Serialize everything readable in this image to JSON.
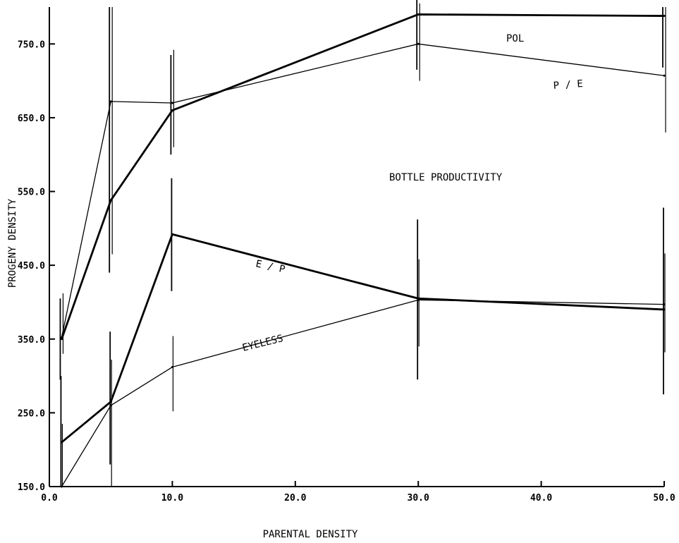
{
  "chart_data": {
    "type": "line",
    "title": "",
    "xlabel": "PARENTAL DENSITY",
    "ylabel": "PROGENY DENSITY",
    "xlim": [
      0,
      50
    ],
    "ylim": [
      150,
      800
    ],
    "xticks": [
      0,
      10,
      20,
      30,
      40,
      50
    ],
    "xtick_labels": [
      "0.0",
      "10.0",
      "20.0",
      "30.0",
      "40.0",
      "50.0"
    ],
    "yticks": [
      150,
      250,
      350,
      450,
      550,
      650,
      750
    ],
    "ytick_labels": [
      "150.0",
      "250.0",
      "350.0",
      "450.0",
      "550.0",
      "650.0",
      "750.0"
    ],
    "grid": false,
    "legend": "none",
    "annotation": "BOTTLE PRODUCTIVITY",
    "x": [
      1,
      5,
      10,
      30,
      50
    ],
    "series": [
      {
        "name": "POL",
        "weight": "bold",
        "values": [
          350,
          538,
          660,
          790,
          788
        ],
        "error_low": [
          295,
          440,
          600,
          715,
          718
        ],
        "error_high": [
          405,
          800,
          735,
          848,
          800
        ]
      },
      {
        "name": "P / E",
        "weight": "thin",
        "values": [
          352,
          672,
          670,
          750,
          707
        ],
        "error_low": [
          330,
          465,
          610,
          700,
          630
        ],
        "error_high": [
          412,
          800,
          742,
          805,
          800
        ]
      },
      {
        "name": "E / P",
        "weight": "bold",
        "values": [
          210,
          265,
          492,
          405,
          390
        ],
        "error_low": [
          150,
          180,
          415,
          295,
          275
        ],
        "error_high": [
          300,
          360,
          568,
          512,
          528
        ]
      },
      {
        "name": "EYELESS",
        "weight": "thin",
        "values": [
          150,
          260,
          312,
          403,
          397
        ],
        "error_low": [
          150,
          150,
          252,
          340,
          332
        ],
        "error_high": [
          235,
          322,
          354,
          458,
          466
        ]
      }
    ]
  }
}
